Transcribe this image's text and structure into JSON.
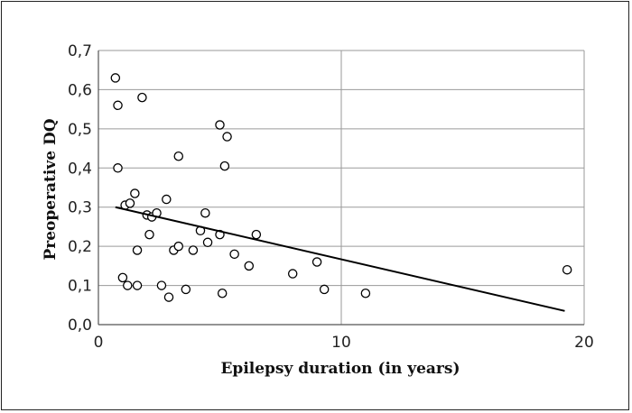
{
  "chart_data": {
    "type": "scatter",
    "xlabel": "Epilepsy duration (in years)",
    "ylabel": "Preoperative DQ",
    "xlim": [
      0,
      20
    ],
    "ylim": [
      0,
      0.7
    ],
    "x_ticks": [
      "0",
      "10",
      "20"
    ],
    "y_ticks": [
      "0,0",
      "0,1",
      "0,2",
      "0,3",
      "0,4",
      "0,5",
      "0,6",
      "0,7"
    ],
    "grid": true,
    "legend": "none",
    "trendline": {
      "x": [
        0.7,
        19.2
      ],
      "y": [
        0.3,
        0.035
      ]
    },
    "points": [
      {
        "x": 0.7,
        "y": 0.63
      },
      {
        "x": 0.8,
        "y": 0.56
      },
      {
        "x": 0.8,
        "y": 0.4
      },
      {
        "x": 1.0,
        "y": 0.12
      },
      {
        "x": 1.1,
        "y": 0.305
      },
      {
        "x": 1.2,
        "y": 0.1
      },
      {
        "x": 1.3,
        "y": 0.31
      },
      {
        "x": 1.5,
        "y": 0.335
      },
      {
        "x": 1.6,
        "y": 0.1
      },
      {
        "x": 1.6,
        "y": 0.19
      },
      {
        "x": 1.8,
        "y": 0.58
      },
      {
        "x": 2.0,
        "y": 0.28
      },
      {
        "x": 2.1,
        "y": 0.23
      },
      {
        "x": 2.2,
        "y": 0.275
      },
      {
        "x": 2.4,
        "y": 0.285
      },
      {
        "x": 2.6,
        "y": 0.1
      },
      {
        "x": 2.8,
        "y": 0.32
      },
      {
        "x": 2.9,
        "y": 0.07
      },
      {
        "x": 3.1,
        "y": 0.19
      },
      {
        "x": 3.3,
        "y": 0.2
      },
      {
        "x": 3.3,
        "y": 0.43
      },
      {
        "x": 3.6,
        "y": 0.09
      },
      {
        "x": 3.9,
        "y": 0.19
      },
      {
        "x": 4.2,
        "y": 0.24
      },
      {
        "x": 4.4,
        "y": 0.285
      },
      {
        "x": 4.5,
        "y": 0.21
      },
      {
        "x": 5.0,
        "y": 0.23
      },
      {
        "x": 5.0,
        "y": 0.51
      },
      {
        "x": 5.1,
        "y": 0.08
      },
      {
        "x": 5.2,
        "y": 0.405
      },
      {
        "x": 5.3,
        "y": 0.48
      },
      {
        "x": 5.6,
        "y": 0.18
      },
      {
        "x": 6.2,
        "y": 0.15
      },
      {
        "x": 6.5,
        "y": 0.23
      },
      {
        "x": 8.0,
        "y": 0.13
      },
      {
        "x": 9.0,
        "y": 0.16
      },
      {
        "x": 9.3,
        "y": 0.09
      },
      {
        "x": 11.0,
        "y": 0.08
      },
      {
        "x": 19.3,
        "y": 0.14
      }
    ]
  }
}
